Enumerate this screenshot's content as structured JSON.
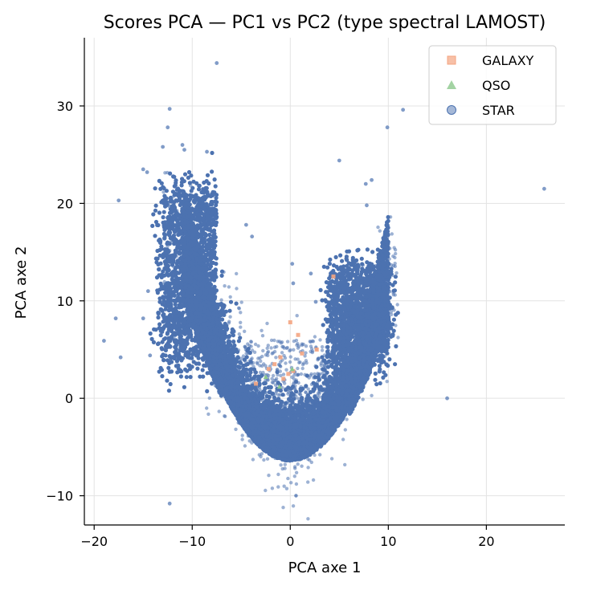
{
  "chart_data": {
    "type": "scatter",
    "title": "Scores PCA — PC1 vs PC2 (type spectral LAMOST)",
    "xlabel": "PCA axe 1",
    "ylabel": "PCA axe 2",
    "xlim": [
      -21,
      28
    ],
    "ylim": [
      -13,
      37
    ],
    "xticks": [
      -20,
      -10,
      0,
      10,
      20
    ],
    "yticks": [
      -10,
      0,
      10,
      20,
      30
    ],
    "xtick_labels": [
      "−20",
      "−10",
      "0",
      "10",
      "20"
    ],
    "ytick_labels": [
      "−10",
      "0",
      "10",
      "20",
      "30"
    ],
    "grid": true,
    "legend_position": "top-right",
    "series": [
      {
        "name": "GALAXY",
        "marker": "square",
        "color": "#f4a582",
        "x": [
          -1.6,
          -1.0,
          -0.7,
          -0.2,
          0.0,
          0.3,
          0.8,
          1.2,
          2.7,
          4.4,
          -3.5,
          -2.2
        ],
        "y": [
          3.5,
          4.2,
          2.0,
          2.5,
          7.8,
          2.8,
          6.5,
          4.6,
          5.0,
          12.5,
          1.5,
          3.0
        ]
      },
      {
        "name": "QSO",
        "marker": "triangle",
        "color": "#8cc88c",
        "x": [
          -1.1,
          0.2,
          -2.5
        ],
        "y": [
          1.2,
          3.0,
          2.2
        ]
      },
      {
        "name": "STAR",
        "marker": "circle",
        "color": "#4c72b0",
        "outliers": {
          "x": [
            -7.5,
            -12.3,
            -12.5,
            -13.0,
            -11.0,
            -10.8,
            -8.5,
            -15.0,
            -14.6,
            -17.5,
            -17.8,
            -19.0,
            -17.3,
            -15.0,
            -14.5,
            -14.3,
            -12.3,
            16.0,
            25.9,
            11.5,
            9.9,
            5.0,
            8.3,
            7.7,
            7.8,
            2.1,
            0.2,
            2.6,
            0.3,
            9.7,
            -4.5,
            -3.9
          ],
          "y": [
            34.4,
            29.7,
            27.8,
            25.8,
            26.0,
            25.5,
            25.3,
            23.5,
            23.2,
            20.3,
            8.2,
            5.9,
            4.2,
            8.2,
            11.0,
            4.4,
            -10.8,
            0.0,
            21.5,
            29.6,
            27.8,
            24.4,
            22.4,
            22.0,
            19.8,
            12.8,
            13.8,
            9.9,
            11.8,
            17.0,
            17.8,
            16.6
          ]
        }
      }
    ]
  }
}
